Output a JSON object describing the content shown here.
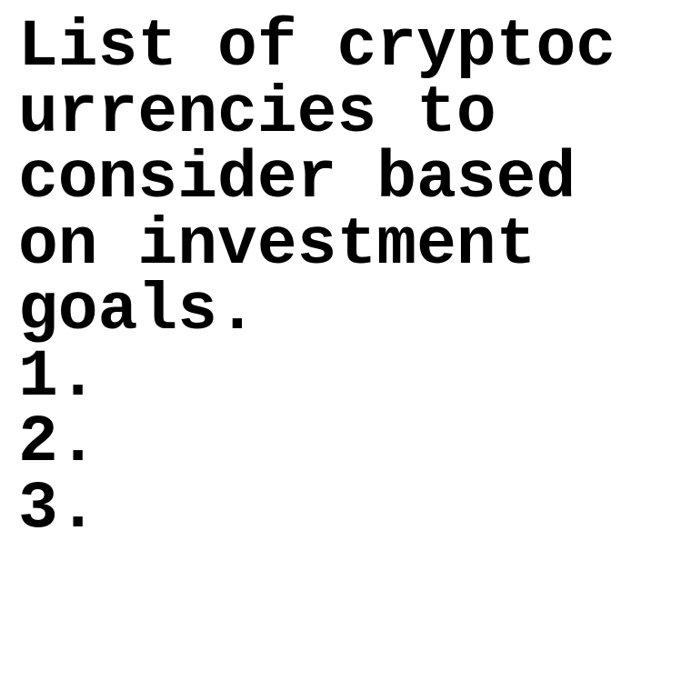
{
  "document": {
    "title_lines": [
      "List of cryptoc",
      "urrencies to",
      "consider based",
      "on investment",
      "goals."
    ],
    "list_items": [
      "1.",
      "2.",
      "3."
    ]
  },
  "colors": {
    "background": "#ffffff",
    "text": "#000000"
  }
}
